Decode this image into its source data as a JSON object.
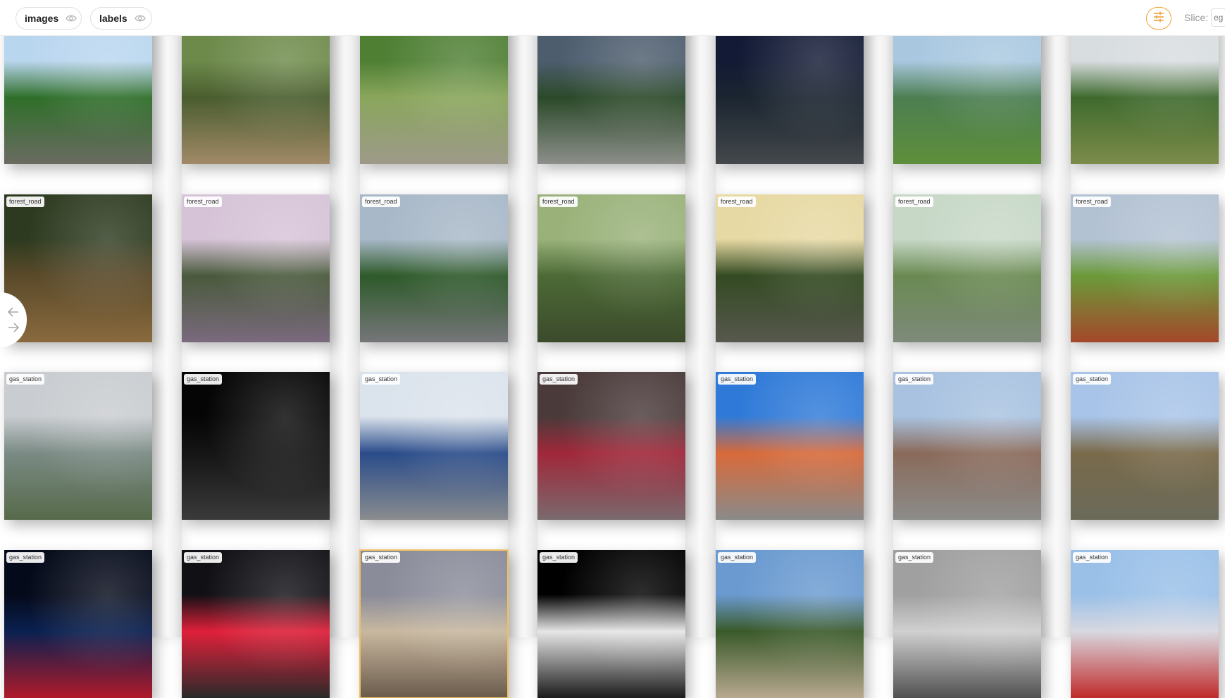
{
  "toolbar": {
    "images_label": "images",
    "labels_label": "labels",
    "slice_label": "Slice:",
    "slice_placeholder": "eg",
    "accent_color": "#f0a23a"
  },
  "icons": {
    "chip_toggle": "eye-icon",
    "settings": "sliders-icon",
    "nav_prev": "arrow-left-icon",
    "nav_next": "arrow-right-icon"
  },
  "tiles": [
    {
      "label": "",
      "colors": [
        "#b9d6ef",
        "#2f6f2a",
        "#6b6b62"
      ]
    },
    {
      "label": "",
      "colors": [
        "#6d8a4a",
        "#4a5d2f",
        "#a28a68"
      ]
    },
    {
      "label": "",
      "colors": [
        "#4e7f33",
        "#8aa65c",
        "#9e9a8a"
      ]
    },
    {
      "label": "",
      "colors": [
        "#4d5d6e",
        "#2c4a2a",
        "#8d8f8a"
      ]
    },
    {
      "label": "",
      "colors": [
        "#121a35",
        "#1b2530",
        "#44484c"
      ]
    },
    {
      "label": "",
      "colors": [
        "#a9c8e0",
        "#4c7e52",
        "#5e8f3a"
      ]
    },
    {
      "label": "",
      "colors": [
        "#d8dde0",
        "#3f6a2e",
        "#7c8c4a"
      ]
    },
    {
      "label": "forest_road",
      "colors": [
        "#2d3a1f",
        "#5a4a2a",
        "#8a6a3e"
      ]
    },
    {
      "label": "forest_road",
      "colors": [
        "#d6c3d7",
        "#4a5a3c",
        "#7a6a7e"
      ]
    },
    {
      "label": "forest_road",
      "colors": [
        "#a8b8c8",
        "#2e5a2a",
        "#76767a"
      ]
    },
    {
      "label": "forest_road",
      "colors": [
        "#9ab27a",
        "#4d6a36",
        "#3b4a2b"
      ]
    },
    {
      "label": "forest_road",
      "colors": [
        "#e7d9a3",
        "#334a22",
        "#58584e"
      ]
    },
    {
      "label": "forest_road",
      "colors": [
        "#c7d8c7",
        "#6a8a52",
        "#7e8a7a"
      ]
    },
    {
      "label": "forest_road",
      "colors": [
        "#b3c2d3",
        "#6b9a3a",
        "#a4472a"
      ]
    },
    {
      "label": "gas_station",
      "colors": [
        "#c9ccd0",
        "#7a8a84",
        "#566a4a"
      ]
    },
    {
      "label": "gas_station",
      "colors": [
        "#050505",
        "#151515",
        "#3a3a3a"
      ]
    },
    {
      "label": "gas_station",
      "colors": [
        "#dbe3ec",
        "#2a4c8a",
        "#8a8c8e"
      ]
    },
    {
      "label": "gas_station",
      "colors": [
        "#4a3a3a",
        "#a0283a",
        "#7a6a6e"
      ]
    },
    {
      "label": "gas_station",
      "colors": [
        "#2f7ad8",
        "#d86a3a",
        "#8a8a8a"
      ]
    },
    {
      "label": "gas_station",
      "colors": [
        "#a8c2e0",
        "#8a6a5a",
        "#8c8c8a"
      ]
    },
    {
      "label": "gas_station",
      "colors": [
        "#a8c4e8",
        "#7a6a4a",
        "#6a6a5a"
      ]
    },
    {
      "label": "gas_station",
      "colors": [
        "#050a1a",
        "#0a2050",
        "#b01a2a"
      ]
    },
    {
      "label": "gas_station",
      "colors": [
        "#101015",
        "#e0203a",
        "#2a2a2a"
      ]
    },
    {
      "label": "gas_station",
      "colors": [
        "#8a8c9a",
        "#c8b8a0",
        "#6a5a4a"
      ]
    },
    {
      "label": "gas_station",
      "colors": [
        "#000000",
        "#e6e6e6",
        "#1a1a1a"
      ]
    },
    {
      "label": "gas_station",
      "colors": [
        "#6a9ad0",
        "#3a5a2a",
        "#b8a890"
      ]
    },
    {
      "label": "gas_station",
      "colors": [
        "#a0a0a0",
        "#d0d0d0",
        "#505050"
      ]
    },
    {
      "label": "gas_station",
      "colors": [
        "#9ac0e8",
        "#d8d8e0",
        "#c02a2a"
      ]
    }
  ]
}
